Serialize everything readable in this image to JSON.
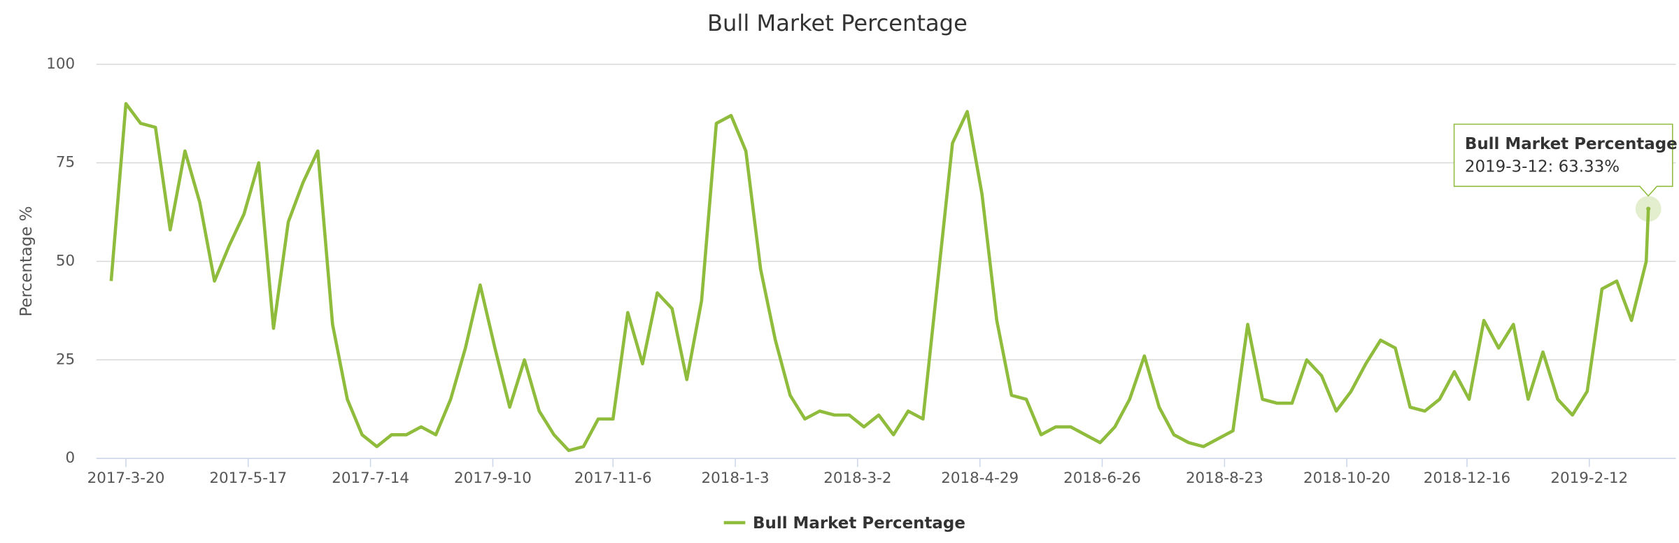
{
  "chart_data": {
    "type": "line",
    "title": "Bull Market Percentage",
    "ylabel": "Percentage %",
    "x": [
      "2017-3-13",
      "2017-3-20",
      "2017-3-27",
      "2017-4-3",
      "2017-4-10",
      "2017-4-17",
      "2017-4-24",
      "2017-5-1",
      "2017-5-8",
      "2017-5-15",
      "2017-5-22",
      "2017-5-29",
      "2017-6-5",
      "2017-6-12",
      "2017-6-19",
      "2017-6-26",
      "2017-7-3",
      "2017-7-10",
      "2017-7-17",
      "2017-7-24",
      "2017-7-31",
      "2017-8-7",
      "2017-8-14",
      "2017-8-21",
      "2017-8-28",
      "2017-9-4",
      "2017-9-11",
      "2017-9-18",
      "2017-9-25",
      "2017-10-2",
      "2017-10-9",
      "2017-10-16",
      "2017-10-23",
      "2017-10-30",
      "2017-11-6",
      "2017-11-13",
      "2017-11-20",
      "2017-11-27",
      "2017-12-4",
      "2017-12-11",
      "2017-12-18",
      "2017-12-25",
      "2018-1-1",
      "2018-1-8",
      "2018-1-15",
      "2018-1-22",
      "2018-1-29",
      "2018-2-5",
      "2018-2-12",
      "2018-2-19",
      "2018-2-26",
      "2018-3-5",
      "2018-3-12",
      "2018-3-19",
      "2018-3-26",
      "2018-4-2",
      "2018-4-9",
      "2018-4-16",
      "2018-4-23",
      "2018-4-30",
      "2018-5-7",
      "2018-5-14",
      "2018-5-21",
      "2018-5-28",
      "2018-6-4",
      "2018-6-11",
      "2018-6-18",
      "2018-6-25",
      "2018-7-2",
      "2018-7-9",
      "2018-7-16",
      "2018-7-23",
      "2018-7-30",
      "2018-8-6",
      "2018-8-13",
      "2018-8-20",
      "2018-8-27",
      "2018-9-3",
      "2018-9-10",
      "2018-9-17",
      "2018-9-24",
      "2018-10-1",
      "2018-10-8",
      "2018-10-15",
      "2018-10-22",
      "2018-10-29",
      "2018-11-5",
      "2018-11-12",
      "2018-11-19",
      "2018-11-26",
      "2018-12-3",
      "2018-12-10",
      "2018-12-17",
      "2018-12-24",
      "2018-12-31",
      "2019-1-7",
      "2019-1-14",
      "2019-1-21",
      "2019-1-28",
      "2019-2-4",
      "2019-2-11",
      "2019-2-18",
      "2019-2-25",
      "2019-3-4",
      "2019-3-11",
      "2019-3-12"
    ],
    "series": [
      {
        "name": "Bull Market Percentage",
        "color": "#8fbc3c",
        "values": [
          45,
          90,
          85,
          84,
          58,
          78,
          65,
          45,
          54,
          62,
          75,
          33,
          60,
          70,
          78,
          34,
          15,
          6,
          3,
          6,
          6,
          8,
          6,
          15,
          28,
          44,
          28,
          13,
          25,
          12,
          6,
          2,
          3,
          10,
          10,
          37,
          24,
          42,
          38,
          20,
          40,
          85,
          87,
          78,
          48,
          30,
          16,
          10,
          12,
          11,
          11,
          8,
          11,
          6,
          12,
          10,
          45,
          80,
          88,
          67,
          35,
          16,
          15,
          6,
          8,
          8,
          6,
          4,
          8,
          15,
          26,
          13,
          6,
          4,
          3,
          5,
          7,
          34,
          15,
          14,
          14,
          25,
          21,
          12,
          17,
          24,
          30,
          28,
          13,
          12,
          15,
          22,
          15,
          35,
          28,
          34,
          15,
          27,
          15,
          11,
          17,
          43,
          45,
          35,
          50,
          63.33
        ]
      }
    ],
    "xlim": [
      "2017-3-6",
      "2019-3-25"
    ],
    "xticks": [
      "2017-3-20",
      "2017-5-17",
      "2017-7-14",
      "2017-9-10",
      "2017-11-6",
      "2018-1-3",
      "2018-3-2",
      "2018-4-29",
      "2018-6-26",
      "2018-8-23",
      "2018-10-20",
      "2018-12-16",
      "2019-2-12"
    ],
    "ylim": [
      0,
      100
    ],
    "yticks": [
      0,
      25,
      50,
      75,
      100
    ],
    "grid": true,
    "tooltip": {
      "title": "Bull Market Percentage",
      "text": "2019-3-12: 63.33%"
    }
  }
}
